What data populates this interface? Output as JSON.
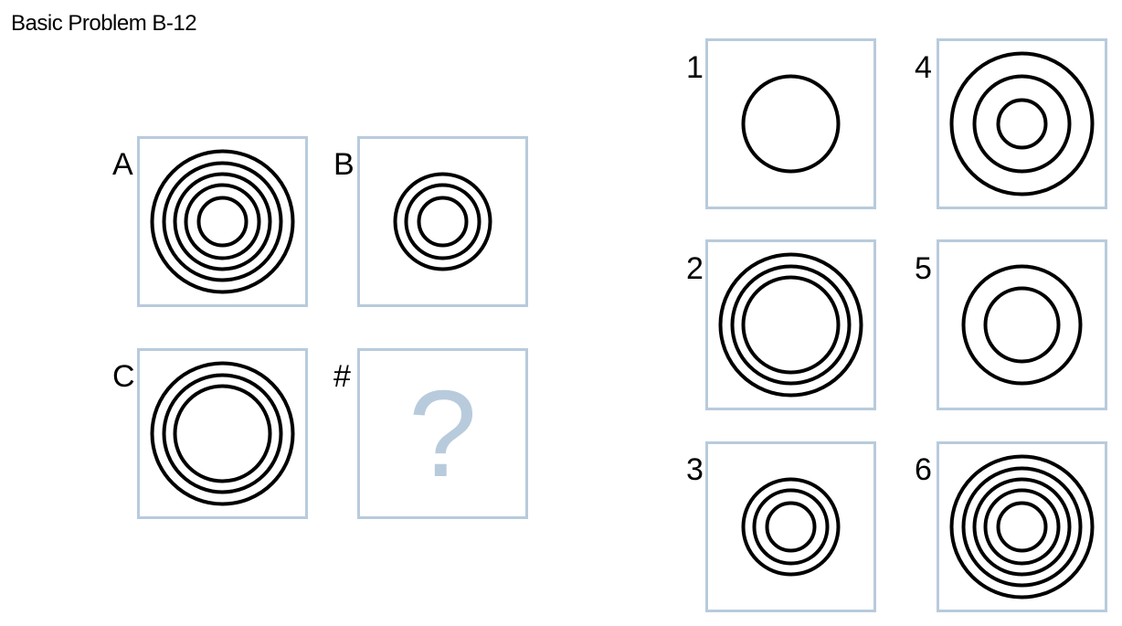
{
  "title": "Basic Problem B-12",
  "problem": {
    "cells": [
      {
        "label": "A",
        "rings": [
          26,
          40,
          52,
          64,
          77
        ]
      },
      {
        "label": "B",
        "rings": [
          26,
          40,
          52
        ]
      },
      {
        "label": "C",
        "rings": [
          52,
          64,
          77
        ]
      },
      {
        "label": "#",
        "content": "?"
      }
    ]
  },
  "answers": [
    {
      "label": "1",
      "rings": [
        52
      ]
    },
    {
      "label": "4",
      "rings": [
        26,
        52,
        77
      ]
    },
    {
      "label": "2",
      "rings": [
        52,
        64,
        77
      ]
    },
    {
      "label": "5",
      "rings": [
        40,
        64
      ]
    },
    {
      "label": "3",
      "rings": [
        26,
        40,
        52
      ]
    },
    {
      "label": "6",
      "rings": [
        26,
        40,
        52,
        64,
        77
      ]
    }
  ],
  "colors": {
    "border": "#b8cbdc",
    "stroke": "#000000"
  }
}
